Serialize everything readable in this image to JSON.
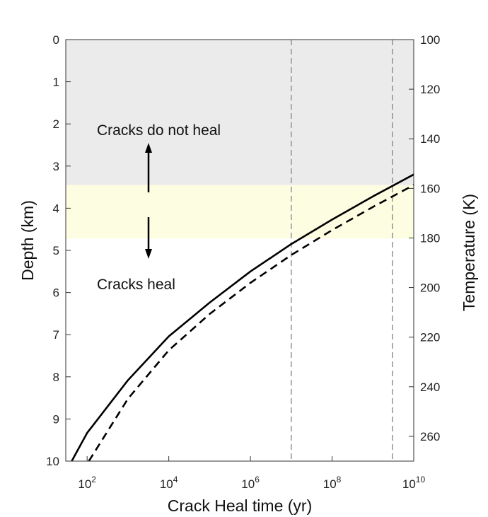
{
  "chart_data": {
    "type": "line",
    "xlabel": "Crack Heal time (yr)",
    "ylabel": "Depth (km)",
    "y2label": "Temperature (K)",
    "x_scale": "log10",
    "xlim": [
      30,
      10000000000
    ],
    "ylim": [
      0,
      10
    ],
    "y2lim": [
      100,
      270
    ],
    "y_inverted": true,
    "x_ticks": [
      {
        "exp": 2,
        "base": "10",
        "sup": "2"
      },
      {
        "exp": 4,
        "base": "10",
        "sup": "4"
      },
      {
        "exp": 6,
        "base": "10",
        "sup": "6"
      },
      {
        "exp": 8,
        "base": "10",
        "sup": "8"
      },
      {
        "exp": 10,
        "base": "10",
        "sup": "10"
      }
    ],
    "y_ticks": [
      0,
      1,
      2,
      3,
      4,
      5,
      6,
      7,
      8,
      9,
      10
    ],
    "y2_ticks": [
      100,
      120,
      140,
      160,
      180,
      200,
      220,
      240,
      260
    ],
    "shaded_regions": [
      {
        "y_from": 0,
        "y_to": 3.45,
        "color": "#ebebeb"
      },
      {
        "y_from": 3.45,
        "y_to": 4.72,
        "color": "#fdfde2"
      }
    ],
    "vlines": [
      10000000,
      3000000000
    ],
    "series": [
      {
        "style": "solid",
        "x": [
          42,
          100,
          1000,
          10000,
          100000,
          1000000,
          10000000,
          100000000,
          1000000000,
          10000000000
        ],
        "y": [
          10,
          9.33,
          8.08,
          7.04,
          6.24,
          5.5,
          4.85,
          4.27,
          3.72,
          3.2
        ]
      },
      {
        "style": "dashed",
        "x": [
          110,
          1000,
          10000,
          100000,
          1000000,
          10000000,
          100000000,
          1000000000,
          10000000000
        ],
        "y": [
          10,
          8.52,
          7.37,
          6.51,
          5.77,
          5.11,
          4.52,
          3.97,
          3.45
        ]
      }
    ],
    "annotations": {
      "upper": "Cracks do not heal",
      "lower": "Cracks heal"
    }
  }
}
